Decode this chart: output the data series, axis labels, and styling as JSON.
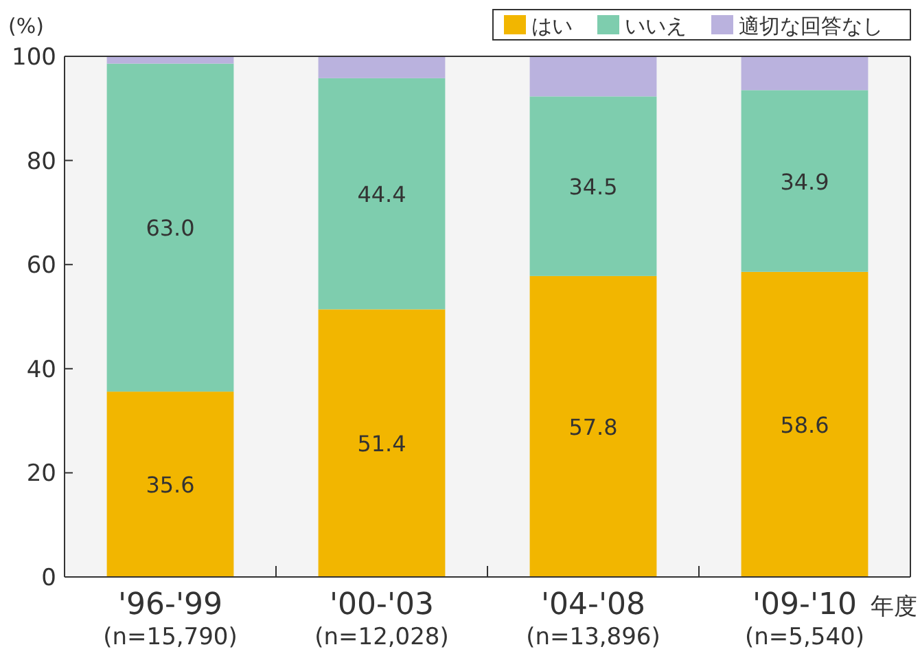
{
  "chart_data": {
    "type": "bar",
    "stacked": true,
    "ylabel": "(%)",
    "xlabel": "年度",
    "categories": [
      "'96-'99\n(n=15,790)",
      "'00-'03\n(n=12,028)",
      "'04-'08\n(n=13,896)",
      "'09-'10\n(n=5,540)"
    ],
    "series": [
      {
        "name": "はい",
        "color": "#f2b600",
        "values": [
          35.6,
          51.4,
          57.8,
          58.6
        ],
        "value_labels": [
          "35.6",
          "51.4",
          "57.8",
          "58.6"
        ]
      },
      {
        "name": "いいえ",
        "color": "#7ecdae",
        "values": [
          63.0,
          44.4,
          34.5,
          34.9
        ],
        "value_labels": [
          "63.0",
          "44.4",
          "34.5",
          "34.9"
        ]
      },
      {
        "name": "適切な回答なし",
        "color": "#bab2de",
        "values": [
          1.4,
          4.2,
          7.7,
          6.5
        ],
        "value_labels": [
          null,
          null,
          null,
          null
        ]
      }
    ],
    "ylim": [
      0,
      100
    ],
    "yticks": [
      0,
      20,
      40,
      60,
      80,
      100
    ],
    "legend": "top right",
    "grid": false
  }
}
